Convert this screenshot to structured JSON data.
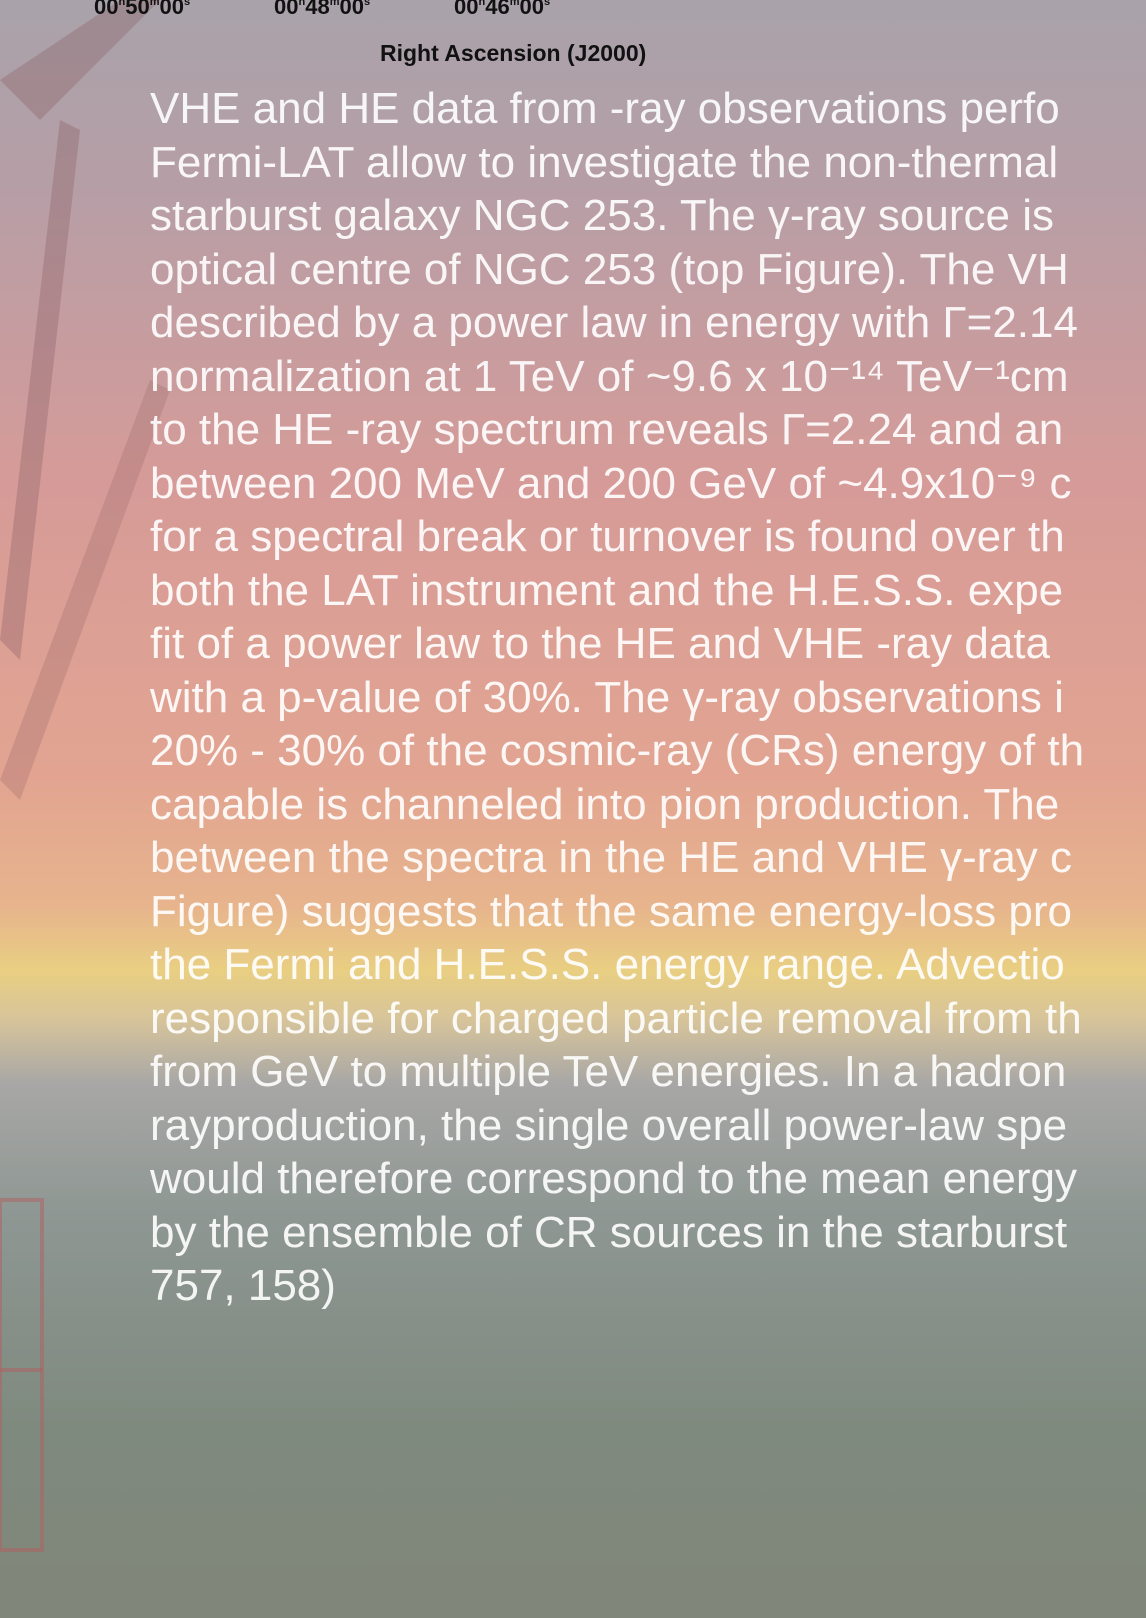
{
  "axis": {
    "ticks": [
      [
        "00",
        "h",
        "50",
        "m",
        "00",
        "s"
      ],
      [
        "00",
        "h",
        "48",
        "m",
        "00",
        "s"
      ],
      [
        "00",
        "h",
        "46",
        "m",
        "00",
        "s"
      ]
    ],
    "title": "Right Ascension (J2000)"
  },
  "paragraph": {
    "lines": [
      "VHE and HE data from -ray observations perfo",
      "Fermi-LAT allow to investigate the non-thermal",
      "starburst galaxy NGC 253. The γ-ray source is",
      "optical centre of NGC 253 (top Figure). The VH",
      "described by a power law in energy with Γ=2.14",
      "normalization at 1 TeV of  ~9.6 x 10⁻¹⁴ TeV⁻¹cm",
      "to the HE -ray spectrum reveals Γ=2.24 and an",
      "between 200 MeV and 200 GeV of ~4.9x10⁻⁹ c",
      "for a spectral break or turnover is found over th",
      "both the LAT instrument and the H.E.S.S. expe",
      "fit of a power law to the HE and VHE -ray data",
      "with a p-value of 30%. The γ-ray observations i",
      "20% - 30% of the cosmic-ray (CRs) energy of th",
      "capable is channeled into pion production. The",
      "between the spectra in the HE and VHE γ-ray c",
      "Figure) suggests that the same energy-loss pro",
      "the Fermi and H.E.S.S. energy range. Advectio",
      "responsible for charged particle removal from th",
      "from GeV to multiple TeV energies. In a hadron",
      "rayproduction, the single overall power-law spe",
      "would therefore correspond to the mean energy",
      "by the ensemble of CR sources in the starburst",
      "757, 158)"
    ]
  }
}
